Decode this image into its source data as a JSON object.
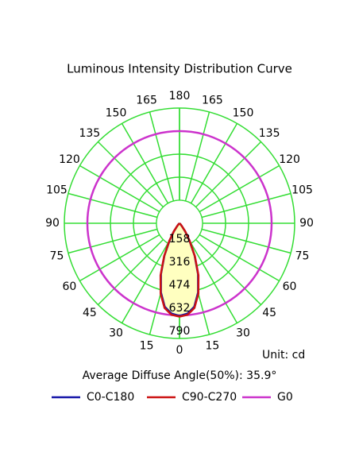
{
  "chart_data": {
    "type": "polar",
    "title": "Luminous Intensity Distribution Curve",
    "unit_label": "Unit: cd",
    "annotation": "Average Diffuse Angle(50%): 35.9°",
    "angle_ticks": [
      0,
      15,
      30,
      45,
      60,
      75,
      90,
      105,
      120,
      135,
      150,
      165,
      180
    ],
    "rlim": [
      0,
      790
    ],
    "rticks": [
      158,
      316,
      474,
      632,
      790
    ],
    "grid": true,
    "grid_color": "#33dd33",
    "fill_color": "#ffffc0",
    "series": [
      {
        "name": "C0-C180",
        "color": "#1414a8",
        "theta": [
          0,
          5,
          10,
          15,
          20,
          25,
          30,
          35,
          40,
          45,
          50
        ],
        "values": [
          635,
          622,
          582,
          492,
          372,
          245,
          135,
          66,
          23,
          7,
          0
        ]
      },
      {
        "name": "C90-C270",
        "color": "#cc1111",
        "theta": [
          0,
          5,
          10,
          15,
          20,
          25,
          30,
          35,
          40,
          45,
          50
        ],
        "values": [
          640,
          630,
          590,
          500,
          380,
          250,
          140,
          70,
          25,
          8,
          0
        ]
      },
      {
        "name": "G0",
        "color": "#cc33cc",
        "theta": [
          0,
          30,
          60,
          90,
          120,
          150,
          180
        ],
        "values": [
          632,
          632,
          632,
          632,
          632,
          632,
          632
        ]
      }
    ]
  }
}
